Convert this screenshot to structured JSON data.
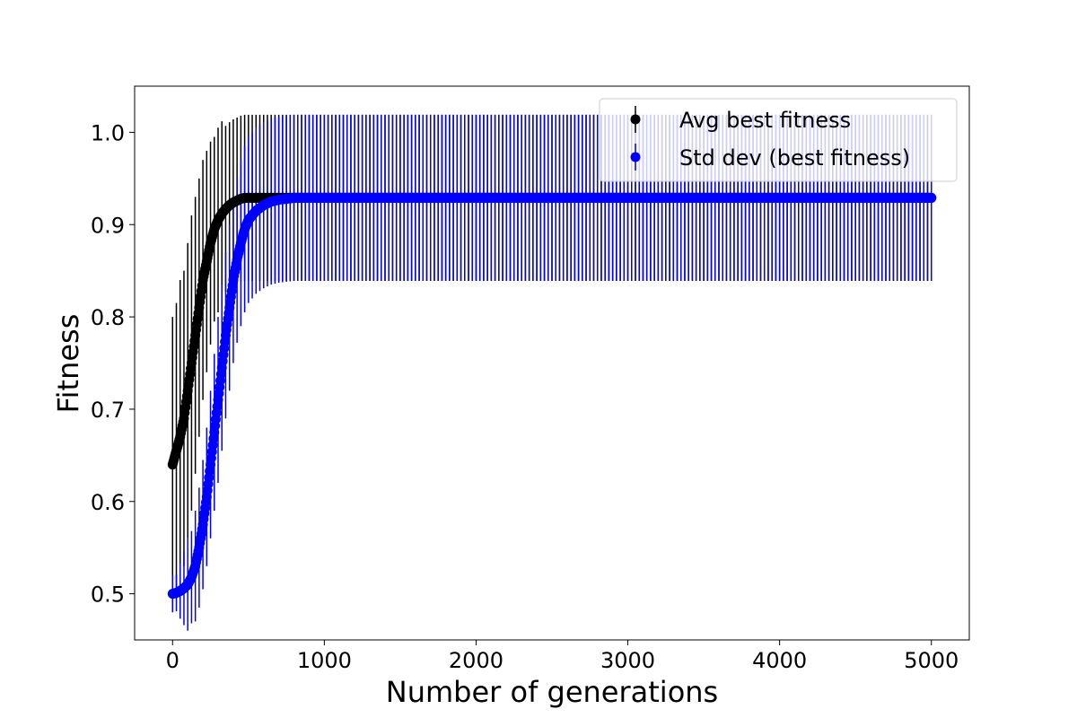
{
  "chart_data": {
    "type": "scatter",
    "title": "",
    "xlabel": "Number of generations",
    "ylabel": "Fitness",
    "xlim": [
      -250,
      5250
    ],
    "ylim": [
      0.45,
      1.05
    ],
    "x_ticks": [
      0,
      1000,
      2000,
      3000,
      4000,
      5000
    ],
    "x_tick_labels": [
      "0",
      "1000",
      "2000",
      "3000",
      "4000",
      "5000"
    ],
    "y_ticks": [
      0.5,
      0.6,
      0.7,
      0.8,
      0.9,
      1.0
    ],
    "y_tick_labels": [
      "0.5",
      "0.6",
      "0.7",
      "0.8",
      "0.9",
      "1.0"
    ],
    "grid": false,
    "legend_position": "top-right",
    "series": [
      {
        "name": "Avg best fitness",
        "color": "#000000",
        "marker": "circle",
        "errorbars": true,
        "x": [
          0,
          25,
          50,
          75,
          100,
          125,
          150,
          175,
          200,
          225,
          250,
          275,
          300,
          325,
          350,
          375,
          400,
          425,
          450,
          475,
          500,
          600,
          700,
          800,
          1000,
          1500,
          2000,
          2500,
          3000,
          3500,
          4000,
          4500,
          5000
        ],
        "y": [
          0.64,
          0.655,
          0.67,
          0.69,
          0.72,
          0.75,
          0.78,
          0.81,
          0.84,
          0.86,
          0.88,
          0.895,
          0.905,
          0.912,
          0.917,
          0.921,
          0.924,
          0.926,
          0.928,
          0.929,
          0.929,
          0.929,
          0.929,
          0.929,
          0.929,
          0.929,
          0.929,
          0.929,
          0.929,
          0.929,
          0.929,
          0.929,
          0.929
        ],
        "err": [
          0.16,
          0.16,
          0.17,
          0.16,
          0.16,
          0.16,
          0.15,
          0.14,
          0.13,
          0.12,
          0.11,
          0.1,
          0.1,
          0.1,
          0.09,
          0.09,
          0.09,
          0.09,
          0.09,
          0.09,
          0.09,
          0.09,
          0.09,
          0.09,
          0.09,
          0.09,
          0.09,
          0.09,
          0.09,
          0.09,
          0.09,
          0.09,
          0.09
        ]
      },
      {
        "name": "Std dev (best fitness)",
        "color": "#0000ff",
        "marker": "circle",
        "errorbars": true,
        "x": [
          0,
          25,
          50,
          75,
          100,
          125,
          150,
          175,
          200,
          225,
          250,
          275,
          300,
          325,
          350,
          375,
          400,
          425,
          450,
          475,
          500,
          550,
          600,
          650,
          700,
          750,
          800,
          1000,
          1500,
          2000,
          2500,
          3000,
          3500,
          4000,
          4500,
          5000
        ],
        "y": [
          0.5,
          0.501,
          0.503,
          0.506,
          0.51,
          0.518,
          0.53,
          0.55,
          0.575,
          0.605,
          0.64,
          0.675,
          0.71,
          0.745,
          0.78,
          0.81,
          0.84,
          0.862,
          0.88,
          0.895,
          0.905,
          0.915,
          0.921,
          0.925,
          0.927,
          0.928,
          0.929,
          0.929,
          0.929,
          0.929,
          0.929,
          0.929,
          0.929,
          0.929,
          0.929,
          0.929
        ],
        "err": [
          0.02,
          0.02,
          0.03,
          0.04,
          0.05,
          0.05,
          0.06,
          0.065,
          0.07,
          0.075,
          0.08,
          0.085,
          0.09,
          0.09,
          0.09,
          0.09,
          0.09,
          0.09,
          0.09,
          0.09,
          0.09,
          0.09,
          0.09,
          0.09,
          0.09,
          0.09,
          0.09,
          0.09,
          0.09,
          0.09,
          0.09,
          0.09,
          0.09,
          0.09,
          0.09,
          0.09
        ]
      }
    ]
  }
}
